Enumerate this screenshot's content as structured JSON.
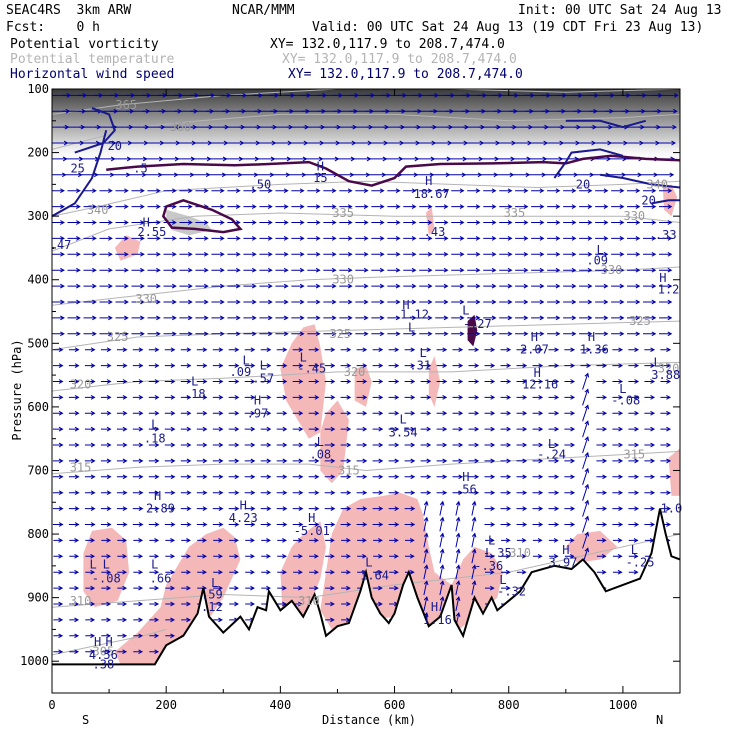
{
  "header": {
    "model": "SEAC4RS  3km ARW",
    "org": "NCAR/MMM",
    "init": "Init: 00 UTC Sat 24 Aug 13",
    "fcst": "Fcst:    0 h",
    "valid": "Valid: 00 UTC Sat 24 Aug 13 (19 CDT Fri 23 Aug 13)"
  },
  "fields": [
    {
      "name": "Potential vorticity",
      "xy": "XY= 132.0,117.9 to 208.7,474.0",
      "color": "#000000"
    },
    {
      "name": "Potential temperature",
      "xy": "XY= 132.0,117.9 to 208.7,474.0",
      "color": "#b4b4b4"
    },
    {
      "name": "Horizontal wind speed",
      "xy": "XY= 132.0,117.9 to 208.7,474.0",
      "color": "#00006e"
    }
  ],
  "chart_data": {
    "type": "cross-section",
    "xlabel": "Distance (km)",
    "ylabel": "Pressure (hPa)",
    "xlim": [
      0,
      1100
    ],
    "ylim": [
      1050,
      100
    ],
    "x_ticks": [
      0,
      200,
      400,
      600,
      800,
      1000
    ],
    "y_ticks": [
      100,
      200,
      300,
      400,
      500,
      600,
      700,
      800,
      900,
      1000
    ],
    "end_labels": {
      "left": "S",
      "right": "N"
    },
    "colors": {
      "wind": "#0000aa",
      "theta": "#b4b4b4",
      "pv_contour": "#4a0a4a",
      "pv_shade": "#f5b8b8",
      "terrain": "#000000"
    },
    "theta_labels": [
      {
        "text": "365",
        "x": 130,
        "p": 125
      },
      {
        "text": "360",
        "x": 225,
        "p": 160
      },
      {
        "text": "340",
        "x": 80,
        "p": 290
      },
      {
        "text": "335",
        "x": 510,
        "p": 295
      },
      {
        "text": "335",
        "x": 810,
        "p": 295
      },
      {
        "text": "330",
        "x": 510,
        "p": 400
      },
      {
        "text": "330",
        "x": 165,
        "p": 430
      },
      {
        "text": "330",
        "x": 980,
        "p": 385
      },
      {
        "text": "325",
        "x": 115,
        "p": 490
      },
      {
        "text": "325",
        "x": 505,
        "p": 485
      },
      {
        "text": "320",
        "x": 50,
        "p": 565
      },
      {
        "text": "320",
        "x": 530,
        "p": 545
      },
      {
        "text": "315",
        "x": 50,
        "p": 695
      },
      {
        "text": "315",
        "x": 520,
        "p": 700
      },
      {
        "text": "315",
        "x": 1020,
        "p": 675
      },
      {
        "text": "310",
        "x": 50,
        "p": 905
      },
      {
        "text": "310",
        "x": 450,
        "p": 905
      },
      {
        "text": "305",
        "x": 90,
        "p": 985
      },
      {
        "text": "340",
        "x": 1060,
        "p": 250
      },
      {
        "text": "330",
        "x": 1020,
        "p": 300
      },
      {
        "text": "320",
        "x": 1080,
        "p": 540
      },
      {
        "text": "325",
        "x": 1030,
        "p": 465
      },
      {
        "text": "310",
        "x": 820,
        "p": 830
      }
    ],
    "pv_labels": [
      {
        "text": "20",
        "x": 110,
        "p": 190
      },
      {
        "text": "25",
        "x": 45,
        "p": 225
      },
      {
        "text": ".5",
        "x": 155,
        "p": 225
      },
      {
        "text": ".50",
        "x": 365,
        "p": 250
      },
      {
        "text": "15",
        "x": 470,
        "p": 240
      },
      {
        "text": "18.67",
        "x": 665,
        "p": 265
      },
      {
        "text": "20",
        "x": 930,
        "p": 250
      },
      {
        "text": "20",
        "x": 1045,
        "p": 275
      },
      {
        "text": "2.55",
        "x": 175,
        "p": 325
      },
      {
        "text": ".47",
        "x": 15,
        "p": 345
      },
      {
        "text": ".43",
        "x": 670,
        "p": 325
      },
      {
        "text": ".33",
        "x": 1075,
        "p": 330
      },
      {
        "text": ".09",
        "x": 955,
        "p": 370
      },
      {
        "text": "1.2",
        "x": 1080,
        "p": 415
      },
      {
        "text": "1.12",
        "x": 635,
        "p": 455
      },
      {
        "text": "-.27",
        "x": 745,
        "p": 470
      },
      {
        "text": "2.07",
        "x": 845,
        "p": 510
      },
      {
        "text": "1.36",
        "x": 950,
        "p": 510
      },
      {
        "text": ".09",
        "x": 330,
        "p": 545
      },
      {
        "text": ".57",
        "x": 370,
        "p": 555
      },
      {
        "text": "-.45",
        "x": 455,
        "p": 540
      },
      {
        "text": ".31",
        "x": 645,
        "p": 535
      },
      {
        "text": "3.88",
        "x": 1075,
        "p": 550
      },
      {
        "text": "12.16",
        "x": 855,
        "p": 565
      },
      {
        "text": ".18",
        "x": 250,
        "p": 580
      },
      {
        "text": ".97",
        "x": 360,
        "p": 610
      },
      {
        "text": "-.08",
        "x": 1005,
        "p": 590
      },
      {
        "text": "3.54",
        "x": 615,
        "p": 640
      },
      {
        "text": ".18",
        "x": 180,
        "p": 650
      },
      {
        "text": "-.24",
        "x": 875,
        "p": 675
      },
      {
        "text": ".08",
        "x": 470,
        "p": 675
      },
      {
        "text": ".56",
        "x": 725,
        "p": 730
      },
      {
        "text": "2.89",
        "x": 190,
        "p": 760
      },
      {
        "text": "4.23",
        "x": 335,
        "p": 775
      },
      {
        "text": "-5.01",
        "x": 455,
        "p": 795
      },
      {
        "text": "-.35",
        "x": 780,
        "p": 830
      },
      {
        "text": "3.97",
        "x": 895,
        "p": 845
      },
      {
        "text": "-.25",
        "x": 1030,
        "p": 845
      },
      {
        "text": "-.36",
        "x": 765,
        "p": 850
      },
      {
        "text": "-.08",
        "x": 95,
        "p": 870
      },
      {
        "text": ".66",
        "x": 190,
        "p": 870
      },
      {
        "text": "1.64",
        "x": 565,
        "p": 865
      },
      {
        "text": "-.32",
        "x": 805,
        "p": 890
      },
      {
        "text": ".59",
        "x": 280,
        "p": 895
      },
      {
        "text": ".12",
        "x": 280,
        "p": 915
      },
      {
        "text": "1.16",
        "x": 675,
        "p": 935
      },
      {
        "text": "4.56",
        "x": 90,
        "p": 990
      },
      {
        "text": ".38",
        "x": 90,
        "p": 1005
      },
      {
        "text": "1.0",
        "x": 1085,
        "p": 760
      }
    ],
    "extrema": [
      {
        "text": "H",
        "x": 470,
        "p": 222
      },
      {
        "text": "H",
        "x": 660,
        "p": 245
      },
      {
        "text": "H",
        "x": 165,
        "p": 310
      },
      {
        "text": "L",
        "x": 960,
        "p": 353
      },
      {
        "text": "H",
        "x": 1070,
        "p": 397
      },
      {
        "text": "H",
        "x": 620,
        "p": 440
      },
      {
        "text": "L",
        "x": 725,
        "p": 448
      },
      {
        "text": "L",
        "x": 630,
        "p": 475
      },
      {
        "text": "H",
        "x": 845,
        "p": 490
      },
      {
        "text": "H",
        "x": 945,
        "p": 490
      },
      {
        "text": "L",
        "x": 440,
        "p": 522
      },
      {
        "text": "L",
        "x": 650,
        "p": 515
      },
      {
        "text": "L",
        "x": 1060,
        "p": 530
      },
      {
        "text": "L",
        "x": 340,
        "p": 527
      },
      {
        "text": "L",
        "x": 370,
        "p": 535
      },
      {
        "text": "H",
        "x": 850,
        "p": 547
      },
      {
        "text": "L",
        "x": 250,
        "p": 560
      },
      {
        "text": "L",
        "x": 1000,
        "p": 572
      },
      {
        "text": "H",
        "x": 360,
        "p": 590
      },
      {
        "text": "L",
        "x": 615,
        "p": 620
      },
      {
        "text": "L",
        "x": 180,
        "p": 628
      },
      {
        "text": "L",
        "x": 875,
        "p": 658
      },
      {
        "text": "L",
        "x": 470,
        "p": 655
      },
      {
        "text": "H",
        "x": 725,
        "p": 710
      },
      {
        "text": "H",
        "x": 185,
        "p": 740
      },
      {
        "text": "H",
        "x": 335,
        "p": 755
      },
      {
        "text": "H",
        "x": 455,
        "p": 775
      },
      {
        "text": "L",
        "x": 770,
        "p": 810
      },
      {
        "text": "H",
        "x": 900,
        "p": 825
      },
      {
        "text": "L",
        "x": 1020,
        "p": 825
      },
      {
        "text": "L",
        "x": 72,
        "p": 848
      },
      {
        "text": "L",
        "x": 95,
        "p": 848
      },
      {
        "text": "L",
        "x": 180,
        "p": 848
      },
      {
        "text": "L",
        "x": 555,
        "p": 845
      },
      {
        "text": "L",
        "x": 765,
        "p": 830
      },
      {
        "text": "L",
        "x": 285,
        "p": 877
      },
      {
        "text": "L",
        "x": 790,
        "p": 872
      },
      {
        "text": "H",
        "x": 670,
        "p": 915
      },
      {
        "text": "H",
        "x": 80,
        "p": 970
      },
      {
        "text": "H",
        "x": 100,
        "p": 970
      }
    ]
  }
}
